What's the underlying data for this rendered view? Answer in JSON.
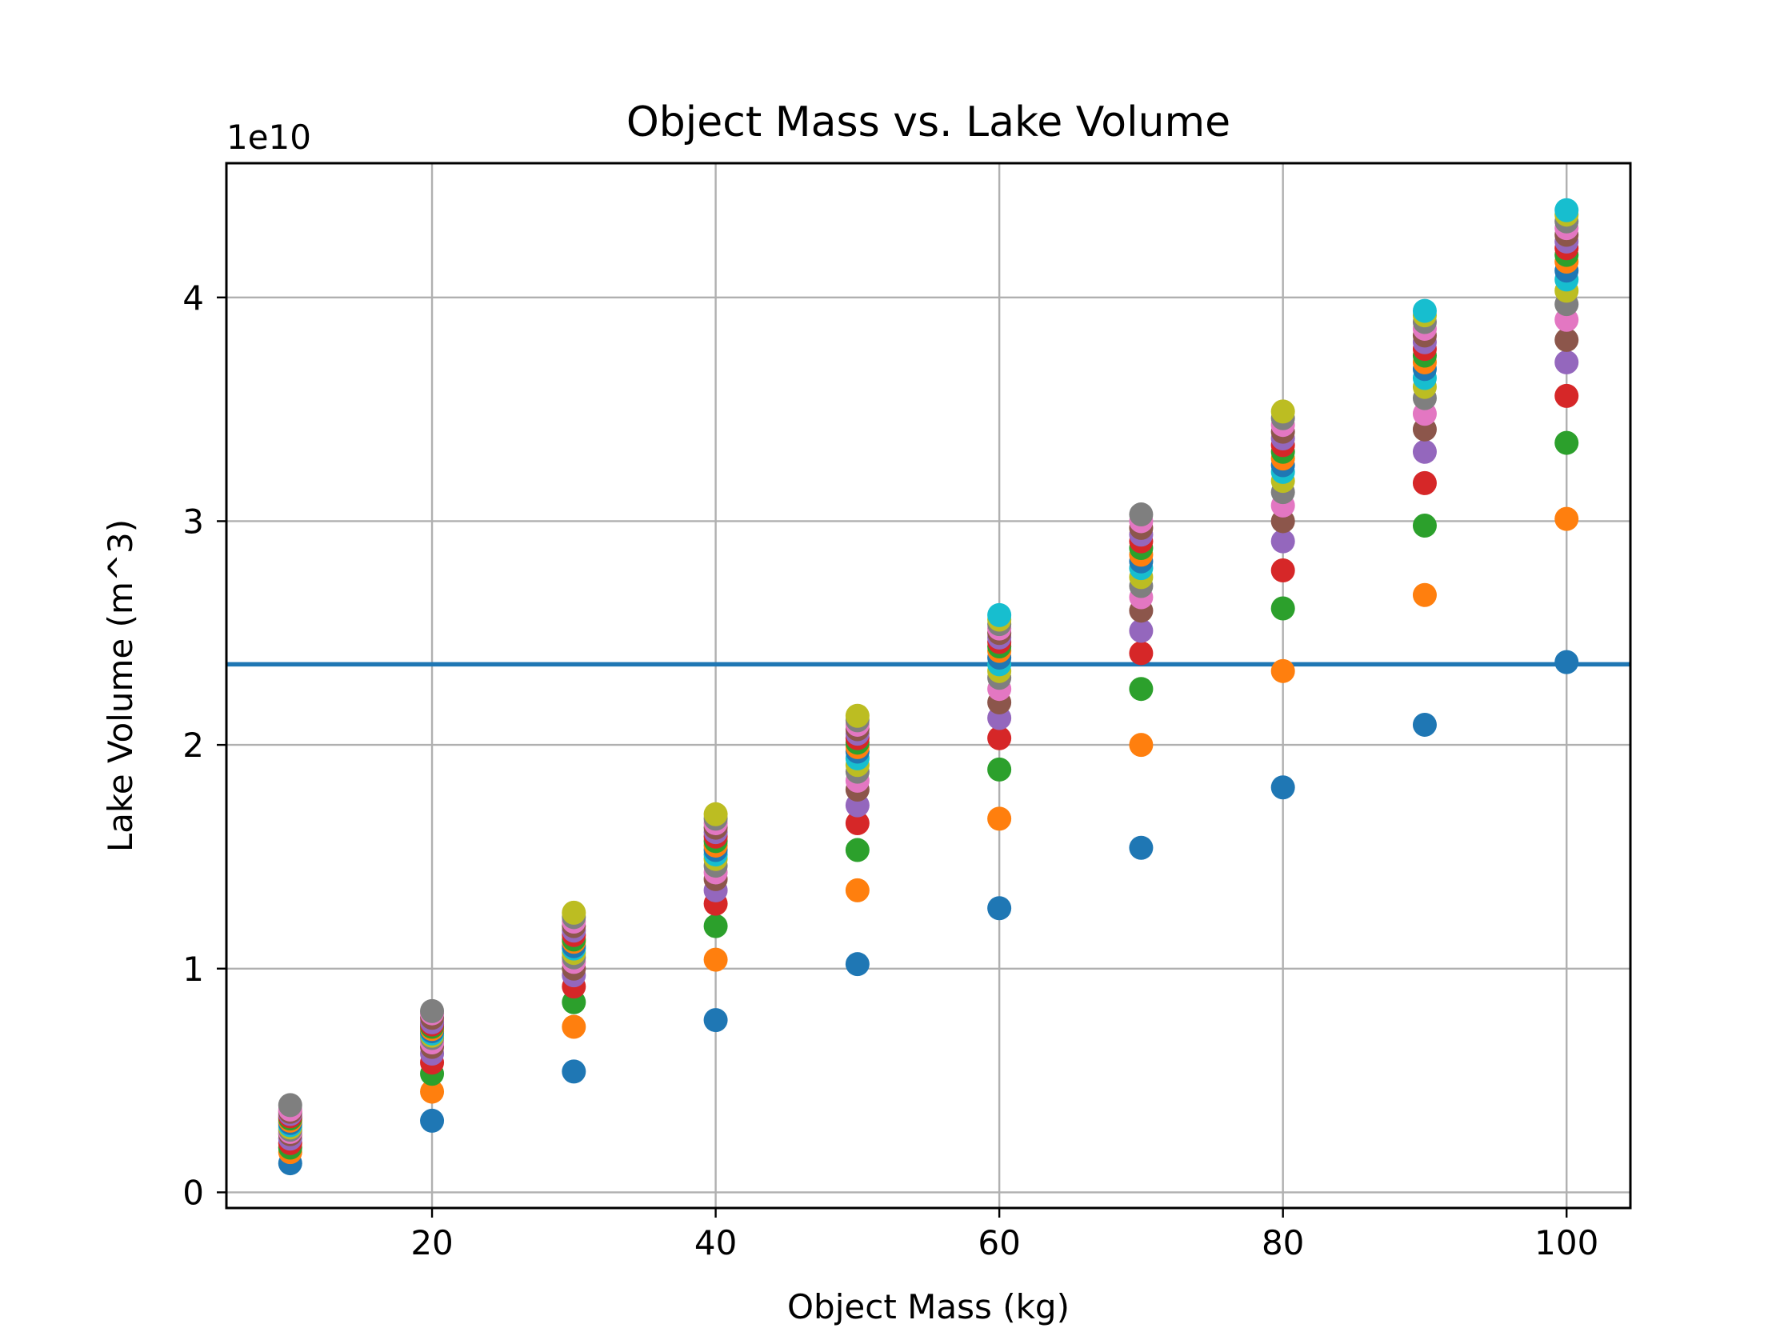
{
  "chart_data": {
    "type": "scatter",
    "title": "Object Mass vs. Lake Volume",
    "xlabel": "Object Mass (kg)",
    "ylabel": "Lake Volume (m^3)",
    "y_offset_label": "1e10",
    "xlim": [
      5.5,
      104.5
    ],
    "ylim": [
      -0.07,
      4.6
    ],
    "y_scale_factor": 10000000000,
    "x_ticks": [
      20,
      40,
      60,
      80,
      100
    ],
    "x_tick_labels": [
      "20",
      "40",
      "60",
      "80",
      "100"
    ],
    "y_ticks": [
      0,
      1,
      2,
      3,
      4
    ],
    "y_tick_labels": [
      "0",
      "1",
      "2",
      "3",
      "4"
    ],
    "grid": true,
    "legend": "none",
    "hline": {
      "y": 2.36,
      "color": "#1f77b4"
    },
    "palette": [
      "#1f77b4",
      "#ff7f0e",
      "#2ca02c",
      "#d62728",
      "#9467bd",
      "#8c564b",
      "#e377c2",
      "#7f7f7f",
      "#bcbd22",
      "#17becf"
    ],
    "columns": [
      {
        "x": 10,
        "y": [
          0.13,
          0.18,
          0.2,
          0.22,
          0.24,
          0.26,
          0.27,
          0.28,
          0.29,
          0.3,
          0.31,
          0.32,
          0.33,
          0.34,
          0.35,
          0.36,
          0.37,
          0.39
        ]
      },
      {
        "x": 20,
        "y": [
          0.32,
          0.45,
          0.53,
          0.58,
          0.62,
          0.65,
          0.67,
          0.69,
          0.7,
          0.71,
          0.72,
          0.73,
          0.74,
          0.75,
          0.76,
          0.78,
          0.8,
          0.81
        ]
      },
      {
        "x": 30,
        "y": [
          0.54,
          0.74,
          0.85,
          0.92,
          0.97,
          1.0,
          1.03,
          1.05,
          1.07,
          1.09,
          1.1,
          1.12,
          1.13,
          1.15,
          1.17,
          1.19,
          1.21,
          1.23,
          1.25
        ]
      },
      {
        "x": 40,
        "y": [
          0.77,
          1.04,
          1.19,
          1.29,
          1.35,
          1.4,
          1.43,
          1.46,
          1.49,
          1.51,
          1.53,
          1.55,
          1.57,
          1.59,
          1.61,
          1.63,
          1.65,
          1.67,
          1.69
        ]
      },
      {
        "x": 50,
        "y": [
          1.02,
          1.35,
          1.53,
          1.65,
          1.73,
          1.8,
          1.84,
          1.88,
          1.91,
          1.94,
          1.97,
          1.99,
          2.01,
          2.03,
          2.05,
          2.07,
          2.09,
          2.11,
          2.13
        ]
      },
      {
        "x": 60,
        "y": [
          1.27,
          1.67,
          1.89,
          2.03,
          2.12,
          2.19,
          2.25,
          2.3,
          2.33,
          2.36,
          2.39,
          2.42,
          2.44,
          2.46,
          2.48,
          2.5,
          2.52,
          2.54,
          2.56,
          2.58
        ]
      },
      {
        "x": 70,
        "y": [
          1.54,
          2.0,
          2.25,
          2.41,
          2.51,
          2.6,
          2.66,
          2.71,
          2.75,
          2.79,
          2.82,
          2.85,
          2.88,
          2.91,
          2.94,
          2.97,
          3.0,
          3.03
        ]
      },
      {
        "x": 80,
        "y": [
          1.81,
          2.33,
          2.61,
          2.78,
          2.91,
          3.0,
          3.07,
          3.13,
          3.18,
          3.22,
          3.25,
          3.28,
          3.31,
          3.34,
          3.37,
          3.4,
          3.43,
          3.46,
          3.49
        ]
      },
      {
        "x": 90,
        "y": [
          2.09,
          2.67,
          2.98,
          3.17,
          3.31,
          3.41,
          3.48,
          3.55,
          3.6,
          3.64,
          3.68,
          3.71,
          3.74,
          3.77,
          3.8,
          3.83,
          3.86,
          3.89,
          3.92,
          3.94
        ]
      },
      {
        "x": 100,
        "y": [
          2.37,
          3.01,
          3.35,
          3.56,
          3.71,
          3.81,
          3.9,
          3.97,
          4.03,
          4.08,
          4.12,
          4.16,
          4.19,
          4.22,
          4.25,
          4.28,
          4.31,
          4.34,
          4.37,
          4.39
        ]
      }
    ]
  }
}
